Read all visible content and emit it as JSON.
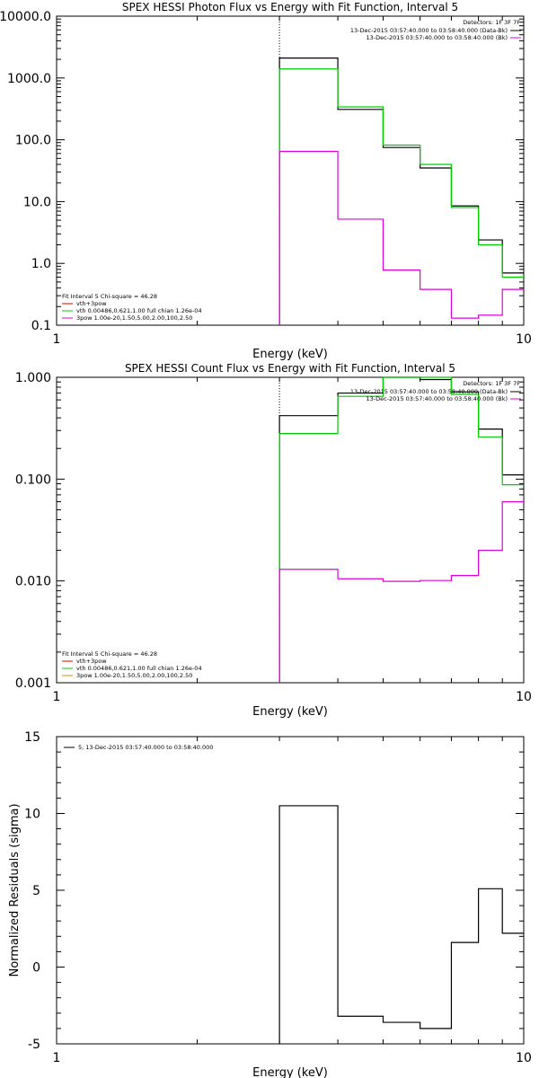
{
  "chart_data": [
    {
      "type": "line",
      "title": "SPEX HESSI Photon Flux vs Energy with Fit Function, Interval 5",
      "xlabel": "Energy (keV)",
      "ylabel": "",
      "xscale": "log",
      "yscale": "log",
      "xlim": [
        1,
        10
      ],
      "ylim": [
        0.1,
        10000
      ],
      "x_tick_labels": [
        "1",
        "10"
      ],
      "y_tick_labels": [
        "0.1",
        "1.0",
        "10.0",
        "100.0",
        "1000.0",
        "10000.0"
      ],
      "vline_x": 3,
      "bin_edges": [
        3,
        4,
        5,
        6,
        7,
        8,
        9,
        10
      ],
      "series": [
        {
          "name": "data",
          "color": "#000000",
          "values": [
            2100,
            310,
            75,
            35,
            8.5,
            2.4,
            0.7
          ]
        },
        {
          "name": "vth+3pow",
          "color": "#00cc00",
          "values": [
            1400,
            340,
            82,
            40,
            8.0,
            2.0,
            0.6
          ]
        },
        {
          "name": "3pow",
          "color": "#dd00dd",
          "values": [
            65,
            5.2,
            0.78,
            0.38,
            0.13,
            0.145,
            0.38
          ]
        }
      ],
      "legend_upper": {
        "detectors": "Detectors: 1F 3F 7F",
        "lines": [
          {
            "text": "13-Dec-2015 03:57:40.000 to 03:58:40.000 (Data-Bk)",
            "color": "#000000"
          },
          {
            "text": "13-Dec-2015 03:57:40.000 to 03:58:40.000 (Bk)",
            "color": "#dd00dd"
          }
        ]
      },
      "legend_lower": {
        "header": "Fit Interval 5   Chi-square = 46.28",
        "lines": [
          {
            "text": "vth+3pow",
            "color": "#dd0000"
          },
          {
            "text": "vth 0.00486,0.621,1.00  full chian 1.26e-04",
            "color": "#00cc00"
          },
          {
            "text": "3pow 1.00e-20,1.50,5.00,2.00,100,2.50",
            "color": "#dd00dd"
          }
        ]
      }
    },
    {
      "type": "line",
      "title": "SPEX HESSI Count Flux vs Energy with Fit Function, Interval 5",
      "xlabel": "Energy (keV)",
      "ylabel": "",
      "xscale": "log",
      "yscale": "log",
      "xlim": [
        1,
        10
      ],
      "ylim": [
        0.001,
        1
      ],
      "x_tick_labels": [
        "1",
        "10"
      ],
      "y_tick_labels": [
        "0.001",
        "0.010",
        "0.100",
        "1.000"
      ],
      "vline_x": 3,
      "bin_edges": [
        3,
        4,
        5,
        6,
        7,
        8,
        9,
        10
      ],
      "series": [
        {
          "name": "data",
          "color": "#000000",
          "values": [
            0.42,
            0.7,
            1.0,
            0.95,
            0.72,
            0.31,
            0.11
          ]
        },
        {
          "name": "vth+3pow",
          "color": "#00cc00",
          "values": [
            0.28,
            0.65,
            1.05,
            1.0,
            0.68,
            0.26,
            0.088
          ]
        },
        {
          "name": "3pow",
          "color": "#dd00dd",
          "values": [
            0.013,
            0.0105,
            0.0099,
            0.0101,
            0.0113,
            0.02,
            0.06
          ]
        }
      ],
      "legend_upper": {
        "detectors": "Detectors: 1F 3F 7F",
        "lines": [
          {
            "text": "13-Dec-2015 03:57:40.000 to 03:58:40.000 (Data-Bk)",
            "color": "#000000"
          },
          {
            "text": "13-Dec-2015 03:57:40.000 to 03:58:40.000 (Bk)",
            "color": "#dd00dd"
          }
        ]
      },
      "legend_lower": {
        "header": "Fit Interval 5   Chi-square = 46.28",
        "lines": [
          {
            "text": "vth+3pow",
            "color": "#dd0000"
          },
          {
            "text": "vth 0.00486,0.621,1.00  full chian 1.26e-04",
            "color": "#00cc00"
          },
          {
            "text": "3pow 1.00e-20,1.50,5.00,2.00,100,2.50",
            "color": "#dd8800"
          }
        ]
      }
    },
    {
      "type": "line",
      "title": "",
      "xlabel": "Energy (keV)",
      "ylabel": "Normalized Residuals (sigma)",
      "xscale": "log",
      "yscale": "linear",
      "xlim": [
        1,
        10
      ],
      "ylim": [
        -5,
        15
      ],
      "x_tick_labels": [
        "1",
        "10"
      ],
      "y_tick_labels": [
        "-5",
        "0",
        "5",
        "10",
        "15"
      ],
      "bin_edges": [
        3,
        4,
        5,
        6,
        7,
        8,
        9,
        10
      ],
      "series": [
        {
          "name": "5, 13-Dec-2015 03:57:40.000 to 03:58:40.000",
          "color": "#000000",
          "values": [
            10.5,
            -3.2,
            -3.6,
            -4.0,
            1.6,
            5.1,
            2.2
          ]
        }
      ],
      "legend": {
        "text": "5, 13-Dec-2015 03:57:40.000 to 03:58:40.000",
        "color": "#000000"
      }
    }
  ]
}
